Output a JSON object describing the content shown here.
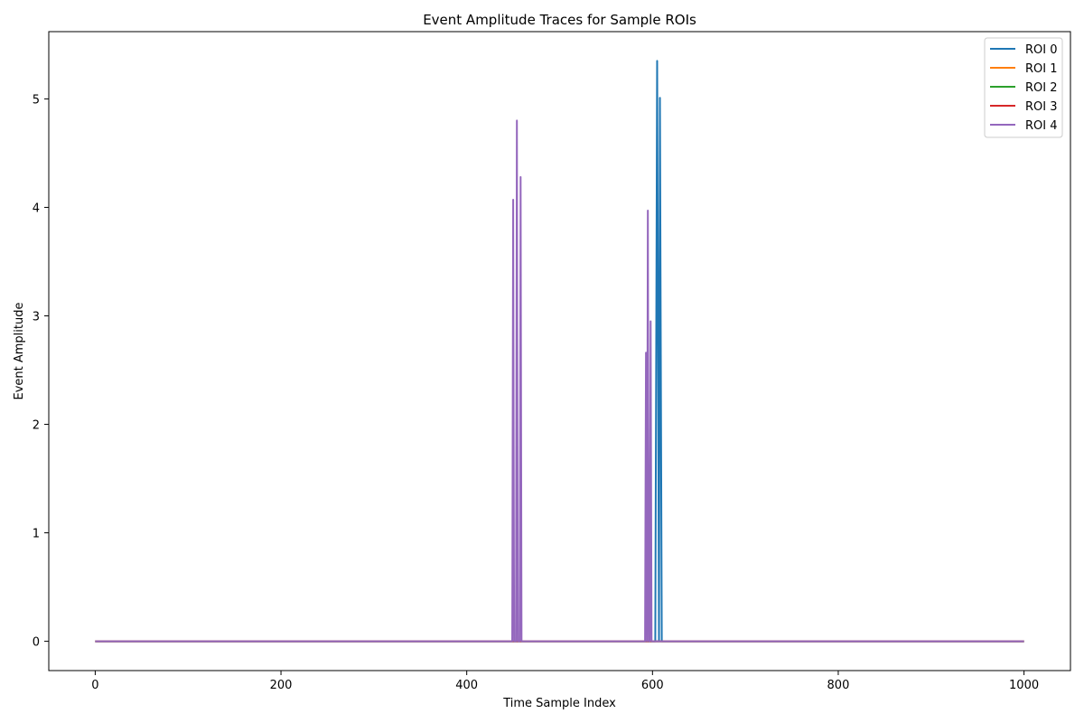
{
  "chart_data": {
    "type": "line",
    "title": "Event Amplitude Traces for Sample ROIs",
    "xlabel": "Time Sample Index",
    "ylabel": "Event Amplitude",
    "xlim": [
      -50,
      1050
    ],
    "ylim": [
      -0.27,
      5.62
    ],
    "xticks": [
      0,
      200,
      400,
      600,
      800,
      1000
    ],
    "yticks": [
      0,
      1,
      2,
      3,
      4,
      5
    ],
    "xtick_labels": [
      "0",
      "200",
      "400",
      "600",
      "800",
      "1000"
    ],
    "ytick_labels": [
      "0",
      "1",
      "2",
      "3",
      "4",
      "5"
    ],
    "grid": false,
    "legend_position": "top-right",
    "series": [
      {
        "name": "ROI 0",
        "color": "#1f77b4",
        "points": [
          [
            0,
            0
          ],
          [
            603,
            0
          ],
          [
            605,
            5.35
          ],
          [
            607,
            0
          ],
          [
            608,
            5.01
          ],
          [
            610,
            0
          ],
          [
            1000,
            0
          ]
        ]
      },
      {
        "name": "ROI 1",
        "color": "#ff7f0e",
        "points": [
          [
            0,
            0
          ],
          [
            1000,
            0
          ]
        ]
      },
      {
        "name": "ROI 2",
        "color": "#2ca02c",
        "points": [
          [
            0,
            0
          ],
          [
            1000,
            0
          ]
        ]
      },
      {
        "name": "ROI 3",
        "color": "#d62728",
        "points": [
          [
            0,
            0
          ],
          [
            1000,
            0
          ]
        ]
      },
      {
        "name": "ROI 4",
        "color": "#9467bd",
        "points": [
          [
            0,
            0
          ],
          [
            449,
            0
          ],
          [
            450,
            4.07
          ],
          [
            451,
            0
          ],
          [
            453,
            0
          ],
          [
            454,
            4.8
          ],
          [
            455,
            0
          ],
          [
            457,
            0
          ],
          [
            458,
            4.28
          ],
          [
            459,
            0
          ],
          [
            592,
            0
          ],
          [
            593,
            2.66
          ],
          [
            594,
            0
          ],
          [
            595,
            3.97
          ],
          [
            596,
            0
          ],
          [
            597,
            0
          ],
          [
            598,
            2.95
          ],
          [
            599,
            0
          ],
          [
            1000,
            0
          ]
        ]
      }
    ]
  }
}
